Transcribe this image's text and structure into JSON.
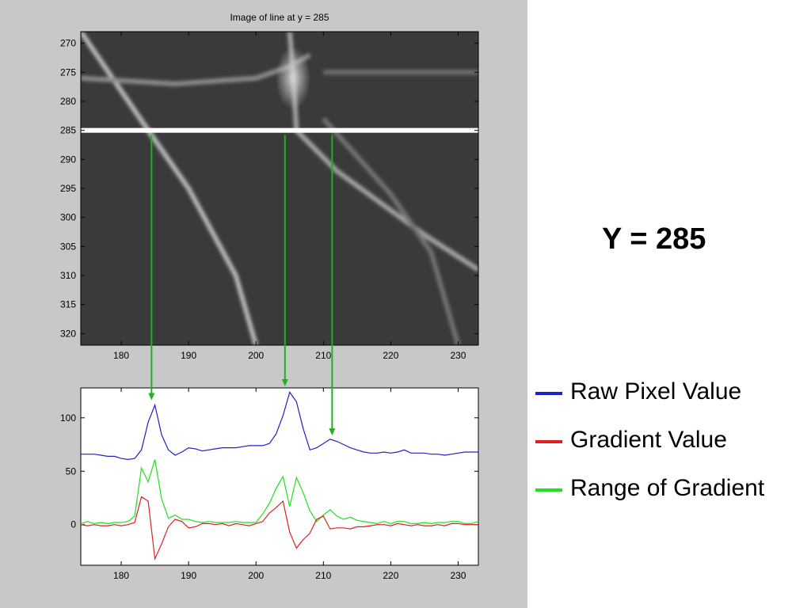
{
  "colors": {
    "figure_bg": "#c8c8c8",
    "axes_bg": "#ffffff",
    "raw": "#2020c8",
    "gradient": "#e02020",
    "range": "#20e020",
    "marker_line": "#ffffff",
    "arrow": "#20b020"
  },
  "side_label": "Y = 285",
  "legend": [
    {
      "label": "Raw Pixel Value",
      "color": "#2020c8"
    },
    {
      "label": "Gradient Value",
      "color": "#e02020"
    },
    {
      "label": "Range of Gradient",
      "color": "#20e020"
    }
  ],
  "chart_data": [
    {
      "type": "heatmap",
      "title": "Image of line at y = 285",
      "xlim": [
        174,
        233
      ],
      "ylim": [
        268,
        322
      ],
      "y_reversed": true,
      "xticks": [
        180,
        190,
        200,
        210,
        220,
        230
      ],
      "yticks": [
        270,
        275,
        280,
        285,
        290,
        295,
        300,
        305,
        310,
        315,
        320
      ],
      "background_gray": 58,
      "highlight_row": 285,
      "bright_lines": [
        {
          "points": [
            [
              174,
              268
            ],
            [
              184,
              285
            ],
            [
              190,
              295
            ],
            [
              197,
              310
            ],
            [
              200,
              322
            ]
          ],
          "gray": 185
        },
        {
          "points": [
            [
              174,
              276
            ],
            [
              188,
              277
            ],
            [
              200,
              276
            ],
            [
              205,
              274
            ],
            [
              208,
              272
            ]
          ],
          "gray": 140
        },
        {
          "points": [
            [
              205,
              268
            ],
            [
              205.5,
              275
            ],
            [
              206,
              285
            ],
            [
              212,
              292
            ],
            [
              225,
              303
            ],
            [
              233,
              309
            ]
          ],
          "gray": 165
        },
        {
          "points": [
            [
              210,
              283
            ],
            [
              220,
              296
            ],
            [
              226,
              306
            ],
            [
              230,
              322
            ]
          ],
          "gray": 115
        },
        {
          "points": [
            [
              210,
              275
            ],
            [
              233,
              275
            ]
          ],
          "gray": 110
        }
      ],
      "bright_spot": {
        "x": 205.5,
        "y": 276,
        "gray": 210
      }
    },
    {
      "type": "line",
      "title": "",
      "xlim": [
        174,
        233
      ],
      "ylim": [
        -38,
        128
      ],
      "xticks": [
        180,
        190,
        200,
        210,
        220,
        230
      ],
      "yticks": [
        0,
        50,
        100
      ],
      "x": [
        174,
        175,
        176,
        177,
        178,
        179,
        180,
        181,
        182,
        183,
        184,
        185,
        186,
        187,
        188,
        189,
        190,
        191,
        192,
        193,
        194,
        195,
        196,
        197,
        198,
        199,
        200,
        201,
        202,
        203,
        204,
        205,
        206,
        207,
        208,
        209,
        210,
        211,
        212,
        213,
        214,
        215,
        216,
        217,
        218,
        219,
        220,
        221,
        222,
        223,
        224,
        225,
        226,
        227,
        228,
        229,
        230,
        231,
        232,
        233
      ],
      "series": [
        {
          "name": "Raw Pixel Value",
          "color": "#2020c8",
          "values": [
            66,
            66,
            66,
            65,
            64,
            64,
            62,
            61,
            62,
            70,
            96,
            112,
            84,
            70,
            65,
            68,
            72,
            71,
            69,
            70,
            71,
            72,
            72,
            72,
            73,
            74,
            74,
            74,
            76,
            85,
            102,
            124,
            115,
            90,
            70,
            72,
            76,
            80,
            78,
            75,
            72,
            70,
            68,
            67,
            67,
            68,
            67,
            68,
            70,
            67,
            67,
            67,
            66,
            66,
            65,
            66,
            67,
            68,
            68,
            68
          ]
        },
        {
          "name": "Gradient Value",
          "color": "#e02020",
          "values": [
            0,
            -1,
            0,
            -1,
            -1,
            0,
            -1,
            0,
            2,
            26,
            22,
            -32,
            -18,
            -2,
            5,
            3,
            -3,
            -2,
            1,
            1,
            0,
            1,
            -1,
            1,
            0,
            -1,
            1,
            3,
            11,
            16,
            22,
            -7,
            -22,
            -14,
            -8,
            5,
            8,
            -4,
            -3,
            -3,
            -4,
            -2,
            -2,
            -1,
            0,
            0,
            -1,
            1,
            0,
            -1,
            0,
            -1,
            -1,
            0,
            -1,
            1,
            1,
            0,
            0,
            0
          ]
        },
        {
          "name": "Range of Gradient",
          "color": "#20e020",
          "values": [
            1,
            3,
            1,
            2,
            1,
            2,
            2,
            3,
            8,
            53,
            40,
            61,
            24,
            6,
            9,
            5,
            5,
            3,
            2,
            3,
            2,
            2,
            2,
            3,
            2,
            2,
            2,
            10,
            20,
            34,
            45,
            17,
            44,
            30,
            13,
            3,
            9,
            14,
            8,
            5,
            7,
            4,
            3,
            2,
            1,
            3,
            1,
            3,
            3,
            1,
            1,
            2,
            1,
            2,
            2,
            3,
            3,
            1,
            1,
            3
          ]
        }
      ]
    }
  ],
  "arrows": [
    {
      "x_data": 184.5,
      "to_y_data": 115
    },
    {
      "x_data": 204.3,
      "to_y_data": 128
    },
    {
      "x_data": 211.3,
      "to_y_data": 82
    }
  ]
}
